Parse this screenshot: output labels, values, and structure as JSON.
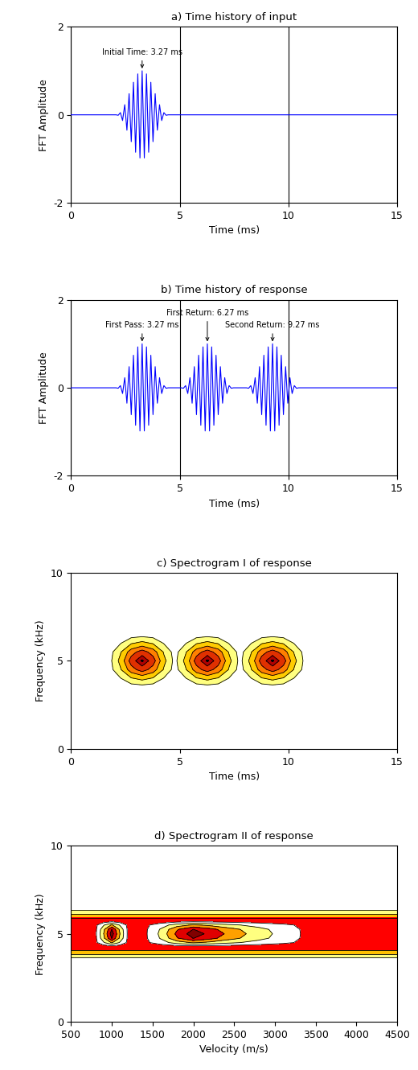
{
  "chart_data": [
    {
      "type": "line",
      "title": "a) Time history of input",
      "x_label": "Time (ms)",
      "y_label": "FFT Amplitude",
      "x": [
        0,
        2.07,
        2.17,
        2.27,
        2.37,
        2.47,
        2.57,
        2.67,
        2.77,
        2.87,
        2.97,
        3.07,
        3.17,
        3.27,
        3.37,
        3.47,
        3.57,
        3.67,
        3.77,
        3.87,
        3.97,
        4.07,
        4.17,
        4.27,
        4.37,
        4.47,
        15
      ],
      "values": [
        0,
        0,
        -0.01,
        0.05,
        -0.13,
        0.23,
        -0.35,
        0.48,
        -0.61,
        0.74,
        -0.85,
        0.93,
        -0.98,
        1.0,
        -0.98,
        0.93,
        -0.85,
        0.74,
        -0.61,
        0.48,
        -0.35,
        0.23,
        -0.13,
        0.05,
        -0.01,
        0,
        0
      ],
      "color": "#0000ff",
      "annotations": [
        {
          "text": "Initial Time: 3.27 ms",
          "x": 3.27,
          "y": 1.0
        }
      ],
      "xlim": [
        0,
        15
      ],
      "xticks": [
        0,
        5,
        10,
        15
      ],
      "ylim": [
        -2,
        2
      ],
      "yticks": [
        -2,
        0,
        2
      ],
      "grid": "x"
    },
    {
      "type": "line",
      "title": "b) Time history of response",
      "x_label": "Time (ms)",
      "y_label": "FFT Amplitude",
      "x": [
        0,
        2.07,
        2.17,
        2.27,
        2.37,
        2.47,
        2.57,
        2.67,
        2.77,
        2.87,
        2.97,
        3.07,
        3.17,
        3.27,
        3.37,
        3.47,
        3.57,
        3.67,
        3.77,
        3.87,
        3.97,
        4.07,
        4.17,
        4.27,
        4.37,
        4.47,
        5.07,
        5.17,
        5.27,
        5.37,
        5.47,
        5.57,
        5.67,
        5.77,
        5.87,
        5.97,
        6.07,
        6.17,
        6.27,
        6.37,
        6.47,
        6.57,
        6.67,
        6.77,
        6.87,
        6.97,
        7.07,
        7.17,
        7.27,
        7.37,
        7.47,
        8.07,
        8.17,
        8.27,
        8.37,
        8.47,
        8.57,
        8.67,
        8.77,
        8.87,
        8.97,
        9.07,
        9.17,
        9.27,
        9.37,
        9.47,
        9.57,
        9.67,
        9.77,
        9.87,
        9.97,
        10.07,
        10.17,
        10.27,
        10.37,
        10.47,
        15
      ],
      "values": [
        0,
        0,
        -0.01,
        0.05,
        -0.13,
        0.23,
        -0.35,
        0.48,
        -0.61,
        0.74,
        -0.85,
        0.93,
        -0.98,
        1.0,
        -0.98,
        0.93,
        -0.85,
        0.74,
        -0.61,
        0.48,
        -0.35,
        0.23,
        -0.13,
        0.05,
        -0.01,
        0,
        0,
        -0.01,
        0.05,
        -0.13,
        0.23,
        -0.35,
        0.48,
        -0.61,
        0.74,
        -0.85,
        0.93,
        -0.98,
        1.0,
        -0.98,
        0.93,
        -0.85,
        0.74,
        -0.61,
        0.48,
        -0.35,
        0.23,
        -0.13,
        0.05,
        -0.01,
        0,
        0,
        -0.01,
        0.05,
        -0.13,
        0.23,
        -0.35,
        0.48,
        -0.61,
        0.74,
        -0.85,
        0.93,
        -0.98,
        1.0,
        -0.98,
        0.93,
        -0.85,
        0.74,
        -0.61,
        0.48,
        -0.35,
        0.23,
        -0.13,
        0.05,
        -0.01,
        0,
        0
      ],
      "color": "#0000ff",
      "annotations": [
        {
          "text": "First Pass: 3.27 ms",
          "x": 3.27,
          "y": 1.0
        },
        {
          "text": "First Return: 6.27 ms",
          "x": 6.27,
          "y": 1.0
        },
        {
          "text": "Second Return: 9.27 ms",
          "x": 9.27,
          "y": 1.0
        }
      ],
      "xlim": [
        0,
        15
      ],
      "xticks": [
        0,
        5,
        10,
        15
      ],
      "ylim": [
        -2,
        2
      ],
      "yticks": [
        -2,
        0,
        2
      ],
      "grid": "x"
    },
    {
      "type": "contour",
      "title": "c) Spectrogram I of response",
      "x_label": "Time (ms)",
      "y_label": "Frequency (kHz)",
      "x": [
        0,
        1.27,
        1.77,
        2.27,
        2.77,
        3.27,
        3.77,
        4.27,
        4.77,
        5.27,
        5.77,
        6.27,
        6.77,
        7.27,
        7.77,
        8.27,
        8.77,
        9.27,
        9.77,
        10.27,
        10.77,
        11.27,
        15
      ],
      "y": [
        0,
        3,
        3.5,
        4,
        4.5,
        5,
        5.5,
        6,
        6.5,
        7,
        10
      ],
      "z": [
        [
          0,
          0,
          0,
          0,
          0,
          0,
          0,
          0,
          0,
          0,
          0,
          0,
          0,
          0,
          0,
          0,
          0,
          0,
          0,
          0,
          0,
          0,
          0
        ],
        [
          0,
          0,
          0,
          0,
          0,
          0,
          0,
          0,
          0,
          0,
          0,
          0,
          0,
          0,
          0,
          0,
          0,
          0,
          0,
          0,
          0,
          0,
          0
        ],
        [
          0,
          0,
          0,
          0.01,
          0.02,
          0.03,
          0.02,
          0.01,
          0,
          0.01,
          0.02,
          0.03,
          0.02,
          0.01,
          0,
          0.01,
          0.02,
          0.03,
          0.02,
          0.01,
          0,
          0,
          0
        ],
        [
          0,
          0,
          0.02,
          0.09,
          0.23,
          0.3,
          0.23,
          0.09,
          0.02,
          0.09,
          0.23,
          0.3,
          0.23,
          0.09,
          0.02,
          0.09,
          0.23,
          0.3,
          0.23,
          0.09,
          0.02,
          0,
          0
        ],
        [
          0,
          0,
          0.04,
          0.23,
          0.56,
          0.75,
          0.56,
          0.23,
          0.04,
          0.23,
          0.56,
          0.75,
          0.56,
          0.23,
          0.04,
          0.23,
          0.56,
          0.75,
          0.56,
          0.23,
          0.04,
          0,
          0
        ],
        [
          0,
          0,
          0.05,
          0.3,
          0.75,
          1,
          0.75,
          0.3,
          0.05,
          0.3,
          0.75,
          1,
          0.75,
          0.3,
          0.05,
          0.3,
          0.75,
          1,
          0.75,
          0.3,
          0.05,
          0,
          0
        ],
        [
          0,
          0,
          0.04,
          0.23,
          0.56,
          0.75,
          0.56,
          0.23,
          0.04,
          0.23,
          0.56,
          0.75,
          0.56,
          0.23,
          0.04,
          0.23,
          0.56,
          0.75,
          0.56,
          0.23,
          0.04,
          0,
          0
        ],
        [
          0,
          0,
          0.02,
          0.09,
          0.23,
          0.3,
          0.23,
          0.09,
          0.02,
          0.09,
          0.23,
          0.3,
          0.23,
          0.09,
          0.02,
          0.09,
          0.23,
          0.3,
          0.23,
          0.09,
          0.02,
          0,
          0
        ],
        [
          0,
          0,
          0,
          0.01,
          0.02,
          0.03,
          0.02,
          0.01,
          0,
          0.01,
          0.02,
          0.03,
          0.02,
          0.01,
          0,
          0.01,
          0.02,
          0.03,
          0.02,
          0.01,
          0,
          0,
          0
        ],
        [
          0,
          0,
          0,
          0,
          0,
          0,
          0,
          0,
          0,
          0,
          0,
          0,
          0,
          0,
          0,
          0,
          0,
          0,
          0,
          0,
          0,
          0,
          0
        ],
        [
          0,
          0,
          0,
          0,
          0,
          0,
          0,
          0,
          0,
          0,
          0,
          0,
          0,
          0,
          0,
          0,
          0,
          0,
          0,
          0,
          0,
          0,
          0
        ]
      ],
      "levels": [
        0.1,
        0.25,
        0.45,
        0.65,
        0.85,
        0.97,
        1.05
      ],
      "colors": [
        "#ffff80",
        "#ffcc00",
        "#ff8000",
        "#e03000",
        "#b00000",
        "#000000"
      ],
      "xlim": [
        0,
        15
      ],
      "xticks": [
        0,
        5,
        10,
        15
      ],
      "ylim": [
        0,
        10
      ],
      "yticks": [
        0,
        5,
        10
      ]
    },
    {
      "type": "contour",
      "title": "d) Spectrogram II of response",
      "x_label": "Velocity (m/s)",
      "y_label": "Frequency (kHz)",
      "x": [
        500,
        800,
        900,
        1000,
        1100,
        1200,
        1400,
        1600,
        1800,
        2000,
        2200,
        2500,
        2800,
        3100,
        3400,
        3700,
        4500
      ],
      "y": [
        0,
        3.5,
        3.75,
        4,
        4.25,
        4.5,
        4.75,
        5,
        5.25,
        5.5,
        5.75,
        6,
        6.25,
        6.5,
        10
      ],
      "z": [
        [
          0,
          0,
          0,
          0,
          0,
          0,
          0,
          0,
          0,
          0,
          0,
          0,
          0,
          0,
          0,
          0,
          0
        ],
        [
          0,
          0,
          0,
          0,
          0,
          0,
          0,
          0,
          0,
          0,
          0,
          0,
          0,
          0,
          0,
          0,
          0
        ],
        [
          0.25,
          0.25,
          0.25,
          0.25,
          0.25,
          0.25,
          0.25,
          0.25,
          0.25,
          0.25,
          0.25,
          0.25,
          0.25,
          0.25,
          0.25,
          0.25,
          0.25
        ],
        [
          0.5,
          0.5,
          0.5,
          0.5,
          0.5,
          0.5,
          0.5,
          0.5,
          0.5,
          0.5,
          0.5,
          0.5,
          0.5,
          0.5,
          0.5,
          0.5,
          0.5
        ],
        [
          0.8,
          0.8,
          0.8,
          0.8,
          0.8,
          0.8,
          0.8,
          0.8,
          0.8,
          0.8,
          0.8,
          0.8,
          0.8,
          0.8,
          0.8,
          0.8,
          0.8
        ],
        [
          1,
          1,
          1.45,
          1.95,
          1.45,
          1,
          1,
          1.3,
          1.7,
          1.95,
          1.8,
          1.55,
          1.35,
          1.18,
          1,
          1,
          1
        ],
        [
          1,
          1,
          1.81,
          2.71,
          1.81,
          1,
          1,
          1.54,
          2.26,
          2.71,
          2.44,
          1.99,
          1.63,
          1.32,
          1,
          1,
          1
        ],
        [
          1,
          1,
          1.9,
          2.9,
          1.9,
          1,
          1,
          1.6,
          2.4,
          2.9,
          2.6,
          2.1,
          1.7,
          1.35,
          1,
          1,
          1
        ],
        [
          1,
          1,
          1.81,
          2.71,
          1.81,
          1,
          1,
          1.54,
          2.26,
          2.71,
          2.44,
          1.99,
          1.63,
          1.32,
          1,
          1,
          1
        ],
        [
          1,
          1,
          1.45,
          1.95,
          1.45,
          1,
          1,
          1.3,
          1.7,
          1.95,
          1.8,
          1.55,
          1.35,
          1.18,
          1,
          1,
          1
        ],
        [
          0.8,
          0.8,
          0.8,
          0.8,
          0.8,
          0.8,
          0.8,
          0.8,
          0.8,
          0.8,
          0.8,
          0.8,
          0.8,
          0.8,
          0.8,
          0.8,
          0.8
        ],
        [
          0.5,
          0.5,
          0.5,
          0.5,
          0.5,
          0.5,
          0.5,
          0.5,
          0.5,
          0.5,
          0.5,
          0.5,
          0.5,
          0.5,
          0.5,
          0.5,
          0.5
        ],
        [
          0.25,
          0.25,
          0.25,
          0.25,
          0.25,
          0.25,
          0.25,
          0.25,
          0.25,
          0.25,
          0.25,
          0.25,
          0.25,
          0.25,
          0.25,
          0.25,
          0.25
        ],
        [
          0,
          0,
          0,
          0,
          0,
          0,
          0,
          0,
          0,
          0,
          0,
          0,
          0,
          0,
          0,
          0,
          0
        ],
        [
          0,
          0,
          0,
          0,
          0,
          0,
          0,
          0,
          0,
          0,
          0,
          0,
          0,
          0,
          0,
          0,
          0
        ]
      ],
      "levels": [
        0.15,
        0.35,
        0.6,
        1.1,
        1.5,
        1.9,
        2.3,
        2.7,
        3.0
      ],
      "colors": [
        "#ffff80",
        "#ffc000",
        "#ff0000",
        "#ffffff",
        "#ffff80",
        "#ffa000",
        "#e00000",
        "#800000"
      ],
      "xlim": [
        500,
        4500
      ],
      "xticks": [
        500,
        1000,
        1500,
        2000,
        2500,
        3000,
        3500,
        4000,
        4500
      ],
      "ylim": [
        0,
        10
      ],
      "yticks": [
        0,
        5,
        10
      ]
    }
  ]
}
